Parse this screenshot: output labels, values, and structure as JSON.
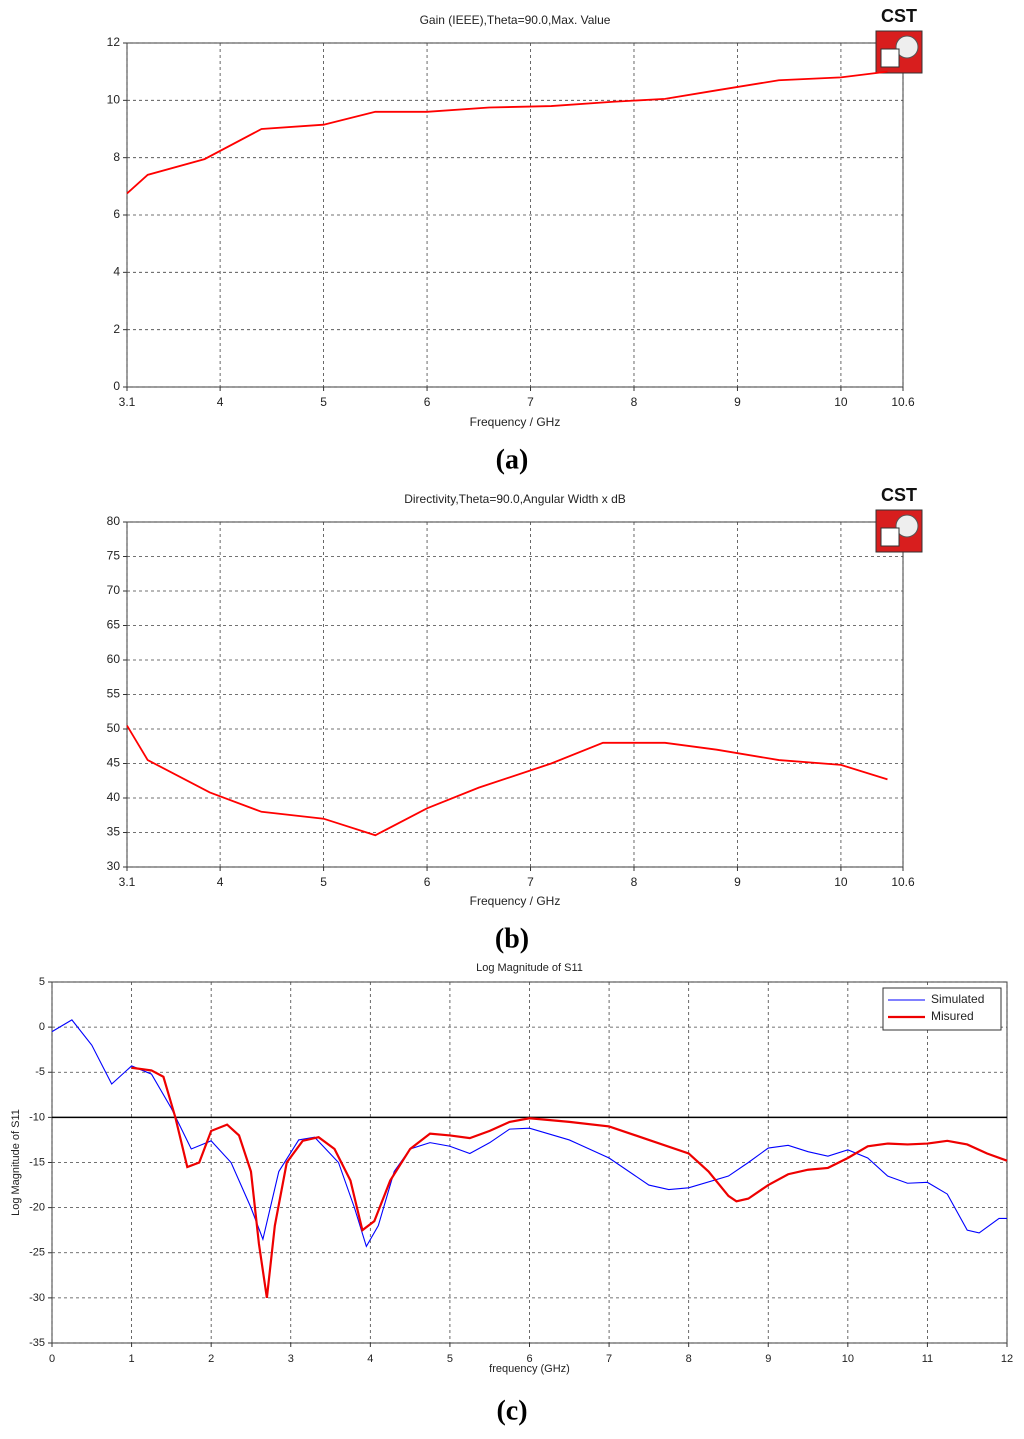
{
  "chart_data": [
    {
      "type": "line",
      "title": "Gain (IEEE),Theta=90.0,Max. Value",
      "x_label": "Frequency / GHz",
      "caption": "(a)",
      "logo": "CST",
      "x": [
        3.1,
        3.3,
        3.85,
        4.4,
        5.0,
        5.5,
        6.0,
        6.6,
        7.2,
        7.8,
        8.3,
        8.8,
        9.4,
        10.0,
        10.45
      ],
      "series": [
        {
          "color": "#ff0000",
          "values": [
            6.75,
            7.4,
            7.95,
            9.0,
            9.15,
            9.6,
            9.6,
            9.75,
            9.8,
            9.95,
            10.05,
            10.35,
            10.7,
            10.8,
            11.0
          ]
        }
      ],
      "xlim": [
        3.1,
        10.6
      ],
      "xticks": [
        3.1,
        4,
        5,
        6,
        7,
        8,
        9,
        10,
        10.6
      ],
      "ylim": [
        0,
        12
      ],
      "yticks": [
        0,
        2,
        4,
        6,
        8,
        10,
        12
      ],
      "grid": true
    },
    {
      "type": "line",
      "title": "Directivity,Theta=90.0,Angular Width x dB",
      "x_label": "Frequency / GHz",
      "caption": "(b)",
      "logo": "CST",
      "x": [
        3.1,
        3.3,
        3.9,
        4.4,
        5.0,
        5.5,
        6.0,
        6.5,
        7.2,
        7.7,
        8.3,
        8.8,
        9.4,
        10.0,
        10.45
      ],
      "series": [
        {
          "color": "#ff0000",
          "values": [
            50.5,
            45.5,
            40.8,
            38,
            37,
            34.6,
            38.5,
            41.5,
            45,
            48,
            48,
            47,
            45.5,
            44.8,
            42.7
          ]
        }
      ],
      "xlim": [
        3.1,
        10.6
      ],
      "xticks": [
        3.1,
        4,
        5,
        6,
        7,
        8,
        9,
        10,
        10.6
      ],
      "ylim": [
        30,
        80
      ],
      "yticks": [
        30,
        35,
        40,
        45,
        50,
        55,
        60,
        65,
        70,
        75,
        80
      ],
      "grid": true
    },
    {
      "type": "line",
      "title": "Log Magnitude of S11",
      "x_label": "frequency (GHz)",
      "y_label": "Log Magnitude of S11",
      "caption": "(c)",
      "series": [
        {
          "name": "Simulated",
          "color": "#0000ff",
          "x": [
            0,
            0.25,
            0.5,
            0.75,
            1.0,
            1.25,
            1.5,
            1.75,
            2.0,
            2.25,
            2.5,
            2.65,
            2.85,
            3.1,
            3.3,
            3.6,
            3.8,
            3.95,
            4.1,
            4.3,
            4.5,
            4.75,
            5.0,
            5.25,
            5.5,
            5.75,
            6.0,
            6.5,
            7.0,
            7.5,
            7.75,
            8.0,
            8.5,
            8.75,
            9.0,
            9.25,
            9.5,
            9.75,
            10.0,
            10.25,
            10.5,
            10.75,
            11.0,
            11.25,
            11.5,
            11.65,
            11.9,
            12.0
          ],
          "values": [
            -0.5,
            0.8,
            -2,
            -6.3,
            -4.3,
            -5.2,
            -9,
            -13.5,
            -12.6,
            -15,
            -20,
            -23.5,
            -16,
            -12.5,
            -12.2,
            -15,
            -20,
            -24.3,
            -22,
            -16,
            -13.5,
            -12.8,
            -13.2,
            -14,
            -12.8,
            -11.3,
            -11.2,
            -12.5,
            -14.5,
            -17.5,
            -18,
            -17.8,
            -16.5,
            -15,
            -13.4,
            -13.1,
            -13.8,
            -14.3,
            -13.6,
            -14.5,
            -16.5,
            -17.3,
            -17.2,
            -18.5,
            -22.5,
            -22.8,
            -21.2,
            -21.2
          ]
        },
        {
          "name": "Misured",
          "color": "#ee0000",
          "x": [
            1.0,
            1.25,
            1.4,
            1.55,
            1.7,
            1.85,
            2.0,
            2.2,
            2.35,
            2.5,
            2.6,
            2.7,
            2.8,
            2.95,
            3.15,
            3.35,
            3.55,
            3.75,
            3.9,
            4.05,
            4.25,
            4.5,
            4.75,
            5.0,
            5.25,
            5.5,
            5.75,
            6.0,
            6.5,
            7.0,
            7.5,
            8.0,
            8.25,
            8.5,
            8.6,
            8.75,
            9.0,
            9.25,
            9.5,
            9.75,
            10.0,
            10.25,
            10.5,
            10.75,
            11.0,
            11.25,
            11.5,
            11.75,
            12.0
          ],
          "values": [
            -4.5,
            -4.8,
            -5.5,
            -10,
            -15.5,
            -15,
            -11.5,
            -10.8,
            -12,
            -16,
            -24,
            -30,
            -22,
            -15,
            -12.6,
            -12.2,
            -13.5,
            -17,
            -22.5,
            -21.5,
            -17,
            -13.5,
            -11.8,
            -12,
            -12.3,
            -11.5,
            -10.5,
            -10.1,
            -10.5,
            -11,
            -12.5,
            -14,
            -16,
            -18.7,
            -19.3,
            -19,
            -17.5,
            -16.3,
            -15.8,
            -15.6,
            -14.5,
            -13.2,
            -12.9,
            -13,
            -12.9,
            -12.6,
            -13,
            -14,
            -14.8
          ]
        }
      ],
      "hline": -10,
      "hline_color": "#000000",
      "xlim": [
        0,
        12
      ],
      "xticks": [
        0,
        1,
        2,
        3,
        4,
        5,
        6,
        7,
        8,
        9,
        10,
        11,
        12
      ],
      "ylim": [
        -35,
        5
      ],
      "yticks": [
        -35,
        -30,
        -25,
        -20,
        -15,
        -10,
        -5,
        0,
        5
      ],
      "grid": true,
      "legend": "upper-right"
    }
  ]
}
